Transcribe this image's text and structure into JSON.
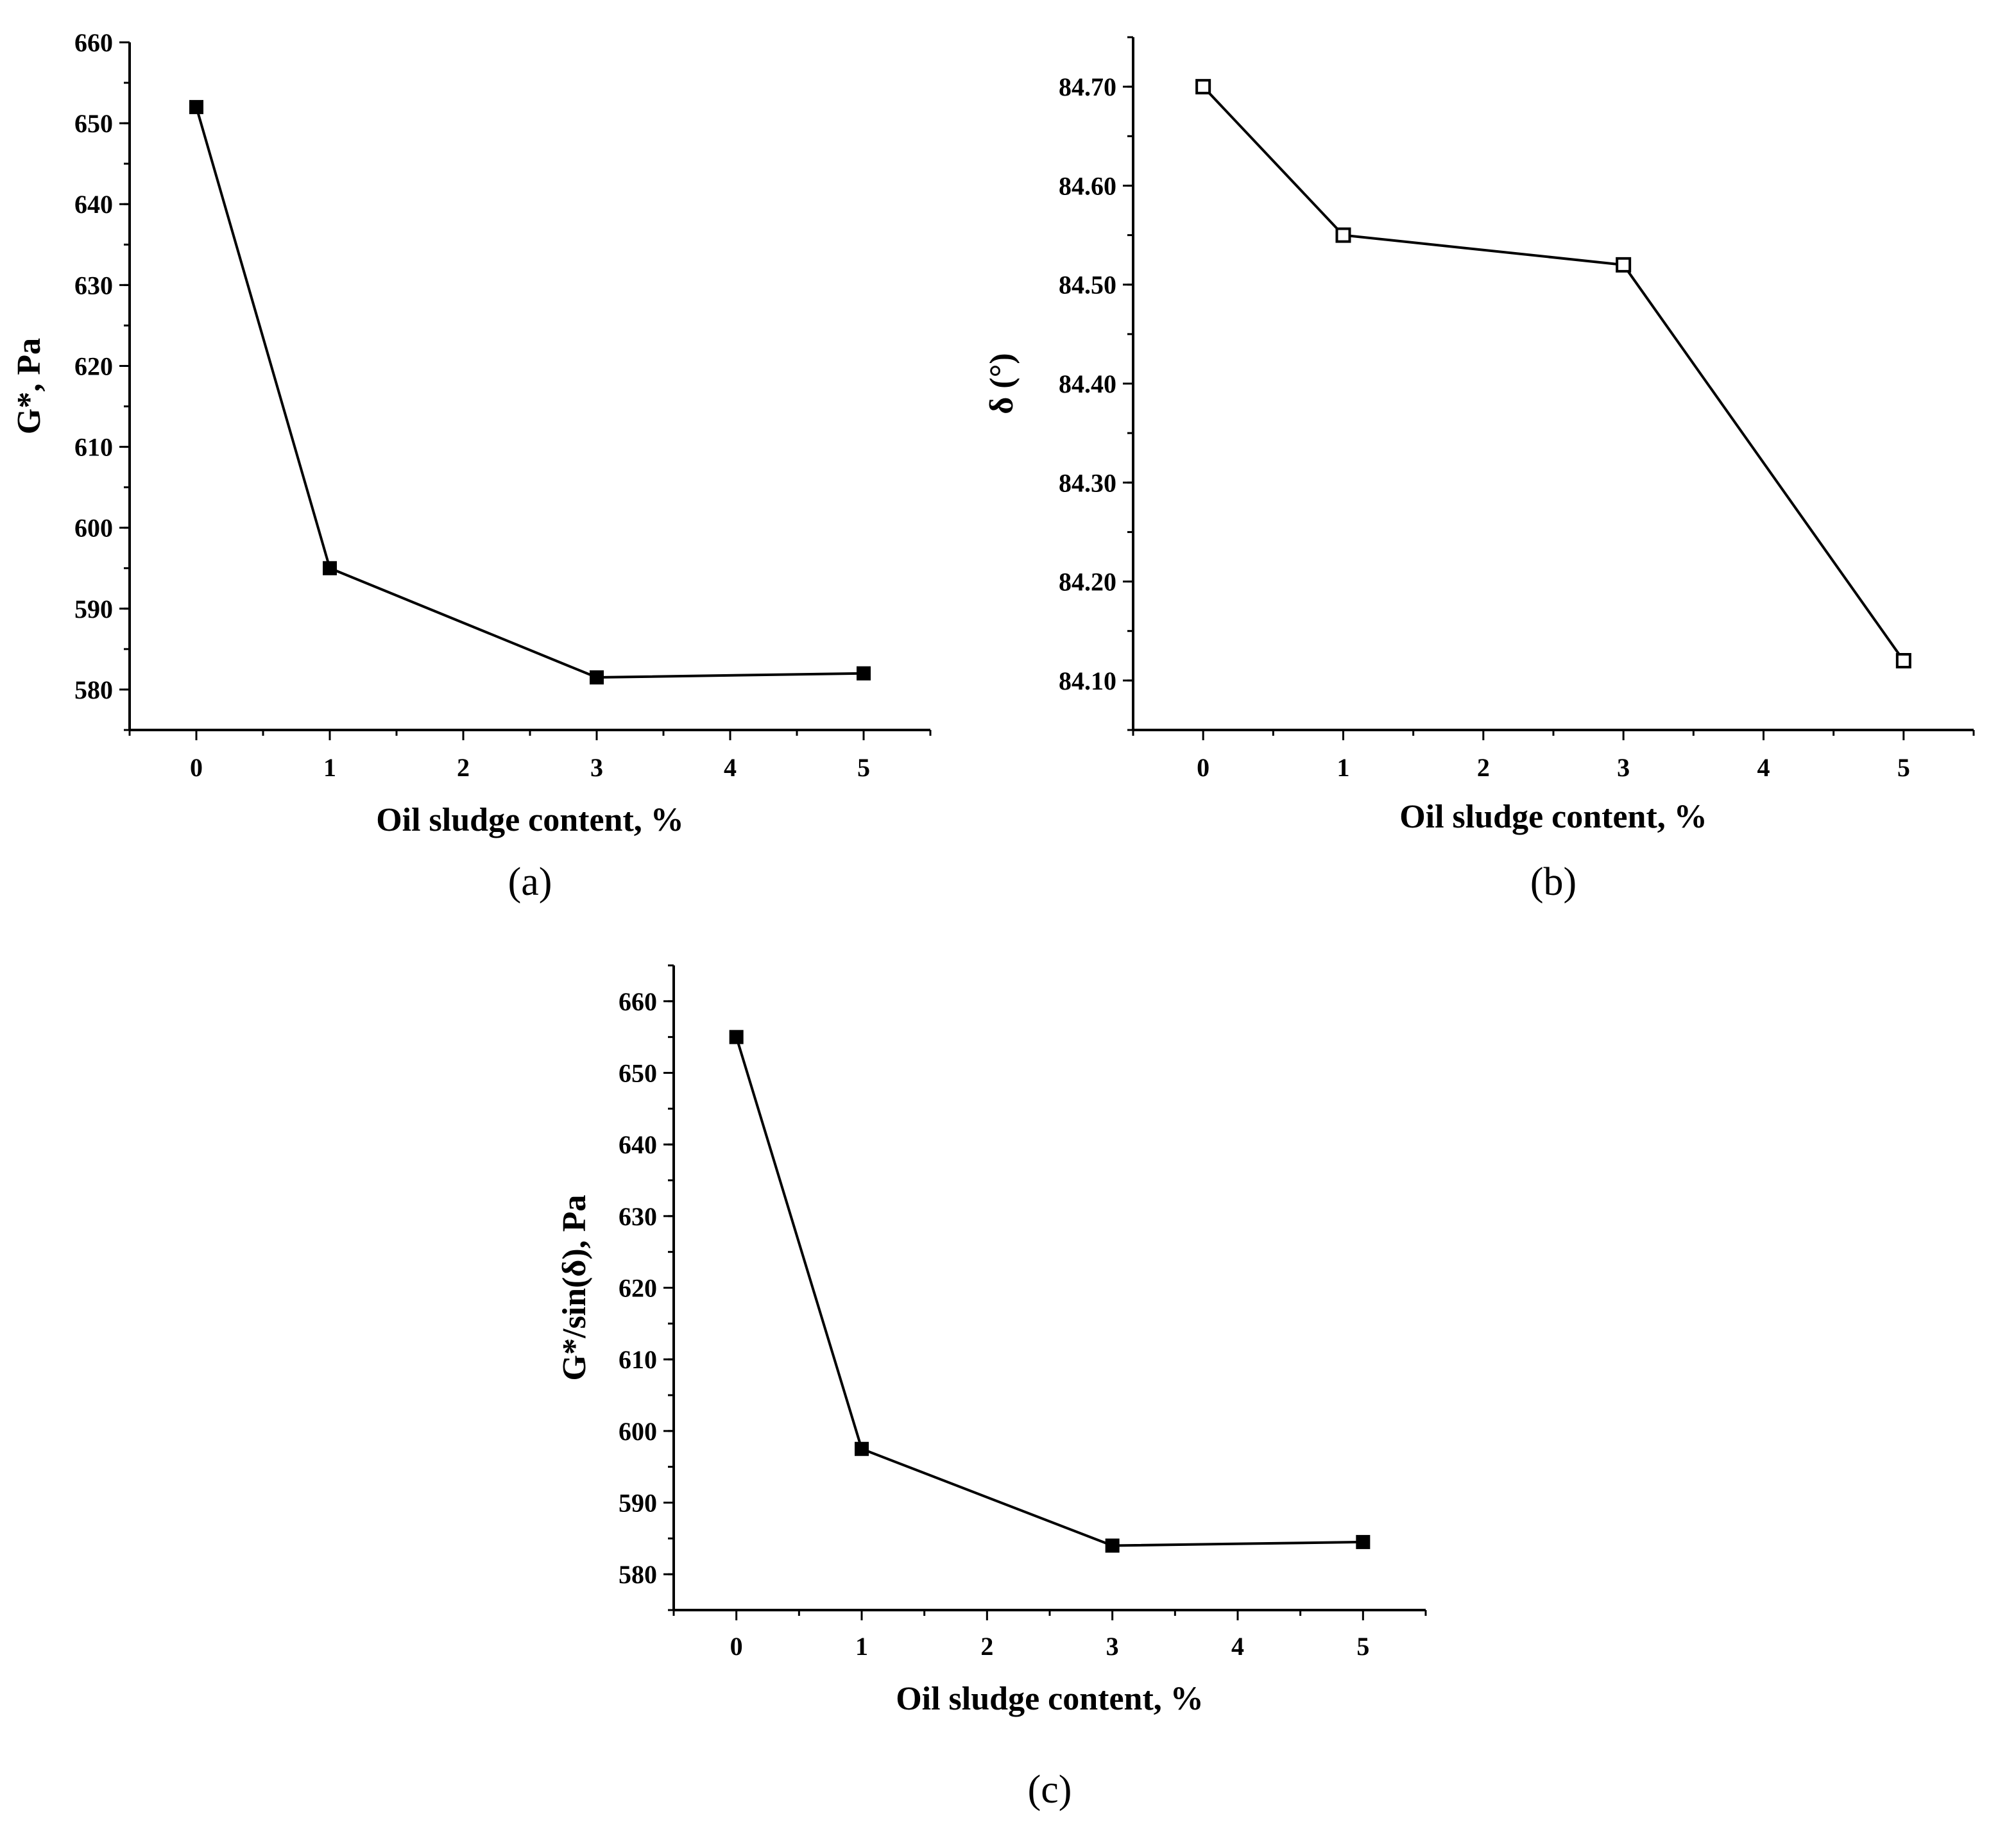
{
  "chart_data": [
    {
      "type": "line",
      "panel_label": "(a)",
      "xlabel": "Oil sludge content, %",
      "ylabel": "G*, Pa",
      "x": [
        0,
        1,
        3,
        5
      ],
      "series": [
        {
          "values": [
            652,
            595,
            581.5,
            582
          ],
          "marker": "filled-square"
        }
      ],
      "xticks": [
        "0",
        "1",
        "2",
        "3",
        "4",
        "5"
      ],
      "yticks": [
        "580",
        "590",
        "600",
        "610",
        "620",
        "630",
        "640",
        "650",
        "660"
      ],
      "xlim": [
        -0.5,
        5.5
      ],
      "ylim": [
        575,
        660
      ],
      "grid": false
    },
    {
      "type": "line",
      "panel_label": "(b)",
      "xlabel": "Oil sludge content, %",
      "ylabel": "δ (°)",
      "x": [
        0,
        1,
        3,
        5
      ],
      "series": [
        {
          "values": [
            84.7,
            84.55,
            84.52,
            84.12
          ],
          "marker": "open-square"
        }
      ],
      "xticks": [
        "0",
        "1",
        "2",
        "3",
        "4",
        "5"
      ],
      "yticks": [
        "84.10",
        "84.20",
        "84.30",
        "84.40",
        "84.50",
        "84.60",
        "84.70"
      ],
      "xlim": [
        -0.5,
        5.5
      ],
      "ylim": [
        84.05,
        84.75
      ],
      "grid": false
    },
    {
      "type": "line",
      "panel_label": "(c)",
      "xlabel": "Oil sludge content, %",
      "ylabel": "G*/sin(δ), Pa",
      "x": [
        0,
        1,
        3,
        5
      ],
      "series": [
        {
          "values": [
            655,
            597.5,
            584,
            584.5
          ],
          "marker": "filled-square"
        }
      ],
      "xticks": [
        "0",
        "1",
        "2",
        "3",
        "4",
        "5"
      ],
      "yticks": [
        "580",
        "590",
        "600",
        "610",
        "620",
        "630",
        "640",
        "650",
        "660"
      ],
      "xlim": [
        -0.5,
        5.5
      ],
      "ylim": [
        575,
        665
      ],
      "grid": false
    }
  ]
}
